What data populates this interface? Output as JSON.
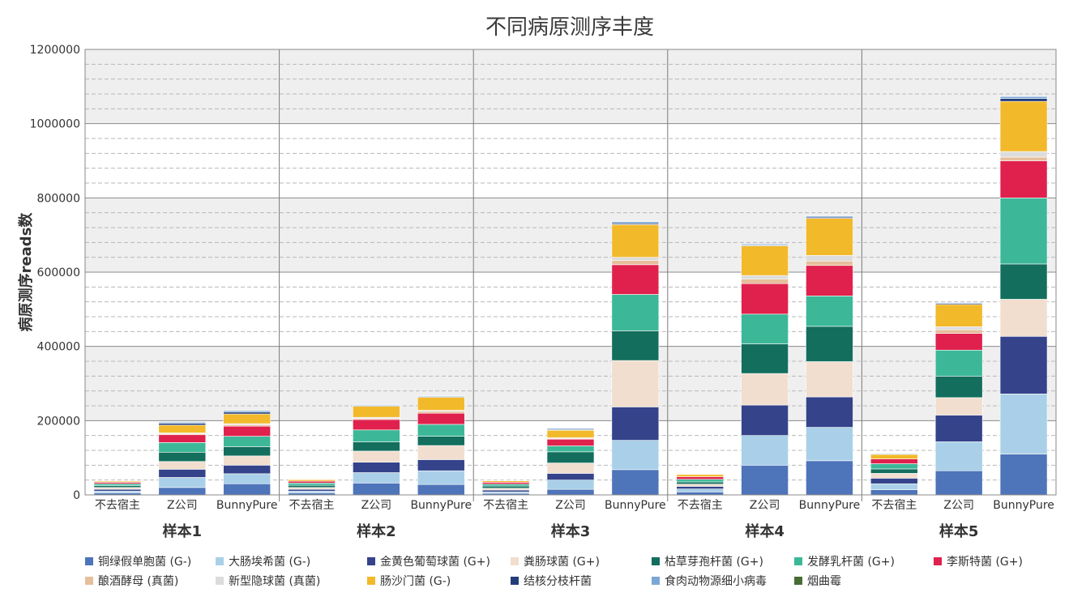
{
  "chart_data": {
    "type": "bar",
    "stacked": true,
    "title": "不同病原测序丰度",
    "ylabel": "病原测序reads数",
    "xlabel": "",
    "ylim": [
      0,
      1200000
    ],
    "yticks": [
      0,
      200000,
      400000,
      600000,
      800000,
      1000000,
      1200000
    ],
    "grid": true,
    "legend_position": "bottom",
    "groups": [
      "样本1",
      "样本2",
      "样本3",
      "样本4",
      "样本5"
    ],
    "methods": [
      "不去宿主",
      "Z公司",
      "BunnyPure"
    ],
    "series": [
      {
        "name": "铜绿假单胞菌 (G-)",
        "color": "#4E74BA",
        "values": [
          [
            5000,
            20000,
            30000
          ],
          [
            5000,
            32000,
            28000
          ],
          [
            4000,
            15000,
            68000
          ],
          [
            8000,
            80000,
            92000
          ],
          [
            14000,
            65000,
            110000
          ]
        ]
      },
      {
        "name": "大肠埃希菌 (G-)",
        "color": "#A9D0E8",
        "values": [
          [
            5000,
            27000,
            27000
          ],
          [
            5000,
            28000,
            37000
          ],
          [
            4000,
            25000,
            79000
          ],
          [
            8000,
            80000,
            90000
          ],
          [
            16000,
            78000,
            162000
          ]
        ]
      },
      {
        "name": "金黄色葡萄球菌 (G+)",
        "color": "#34438A",
        "values": [
          [
            5000,
            22000,
            23000
          ],
          [
            5000,
            28000,
            30000
          ],
          [
            5000,
            18000,
            90000
          ],
          [
            7000,
            82000,
            82000
          ],
          [
            15000,
            72000,
            155000
          ]
        ]
      },
      {
        "name": "粪肠球菌 (G+)",
        "color": "#F1DECF",
        "values": [
          [
            5000,
            21000,
            25000
          ],
          [
            5000,
            30000,
            38000
          ],
          [
            5000,
            28000,
            125000
          ],
          [
            6000,
            85000,
            95000
          ],
          [
            13000,
            47000,
            100000
          ]
        ]
      },
      {
        "name": "枯草芽孢杆菌 (G+)",
        "color": "#136E5D",
        "values": [
          [
            5000,
            25000,
            25000
          ],
          [
            6000,
            25000,
            25000
          ],
          [
            6000,
            30000,
            80000
          ],
          [
            6000,
            80000,
            95000
          ],
          [
            12000,
            58000,
            95000
          ]
        ]
      },
      {
        "name": "发酵乳杆菌 (G+)",
        "color": "#3CB898",
        "values": [
          [
            5000,
            26000,
            28000
          ],
          [
            6000,
            32000,
            32000
          ],
          [
            5000,
            16000,
            98000
          ],
          [
            7000,
            80000,
            82000
          ],
          [
            14000,
            70000,
            178000
          ]
        ]
      },
      {
        "name": "李斯特菌 (G+)",
        "color": "#E0214D",
        "values": [
          [
            4000,
            21000,
            27000
          ],
          [
            5000,
            28000,
            30000
          ],
          [
            5000,
            18000,
            80000
          ],
          [
            7000,
            82000,
            82000
          ],
          [
            13000,
            45000,
            100000
          ]
        ]
      },
      {
        "name": "酿酒酵母 (真菌)",
        "color": "#E6BF9C",
        "values": [
          [
            0,
            3000,
            4000
          ],
          [
            0,
            3000,
            5000
          ],
          [
            0,
            2000,
            12000
          ],
          [
            0,
            12000,
            12000
          ],
          [
            0,
            10000,
            10000
          ]
        ]
      },
      {
        "name": "新型隐球菌 (真菌)",
        "color": "#DCDCDC",
        "values": [
          [
            0,
            2000,
            3000
          ],
          [
            0,
            3000,
            3000
          ],
          [
            0,
            2000,
            8000
          ],
          [
            0,
            10000,
            15000
          ],
          [
            0,
            8000,
            15000
          ]
        ]
      },
      {
        "name": "肠沙门菌 (G-)",
        "color": "#F2B92A",
        "values": [
          [
            3000,
            21000,
            26000
          ],
          [
            4000,
            30000,
            35000
          ],
          [
            4000,
            20000,
            88000
          ],
          [
            6000,
            80000,
            100000
          ],
          [
            12000,
            60000,
            135000
          ]
        ]
      },
      {
        "name": "结核分枝杆菌",
        "color": "#243D7A",
        "values": [
          [
            0,
            5000,
            5000
          ],
          [
            0,
            2000,
            2000
          ],
          [
            0,
            2000,
            3000
          ],
          [
            0,
            2000,
            3000
          ],
          [
            0,
            3000,
            8000
          ]
        ]
      },
      {
        "name": "食肉动物源细小病毒",
        "color": "#7BA7D6",
        "values": [
          [
            1000,
            3000,
            4000
          ],
          [
            1000,
            2000,
            2000
          ],
          [
            1000,
            3000,
            5000
          ],
          [
            1000,
            3000,
            3000
          ],
          [
            2000,
            2000,
            5000
          ]
        ]
      },
      {
        "name": "烟曲霉",
        "color": "#486D34",
        "values": [
          [
            0,
            0,
            0
          ],
          [
            0,
            0,
            0
          ],
          [
            0,
            0,
            0
          ],
          [
            0,
            0,
            0
          ],
          [
            0,
            0,
            0
          ]
        ]
      }
    ]
  }
}
